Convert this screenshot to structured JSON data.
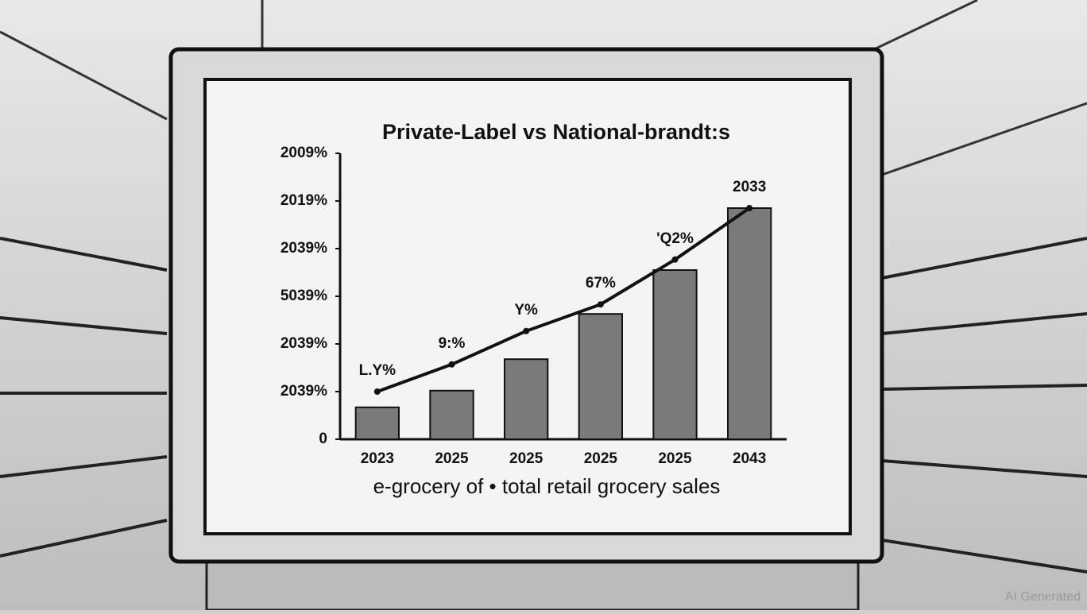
{
  "chart_data": {
    "type": "bar",
    "title": "Private-Label vs National-brandt:s",
    "x_label": "e-grocery of • total retail grocery sales",
    "categories": [
      "2023",
      "2025",
      "2025",
      "2025",
      "2025",
      "2043"
    ],
    "series": [
      {
        "type": "bar",
        "color": "#7a7a7a",
        "values": [
          0.67,
          1.02,
          1.68,
          2.63,
          3.55,
          4.85
        ]
      },
      {
        "type": "line",
        "color": "#111111",
        "values": [
          1.0,
          1.57,
          2.27,
          2.83,
          3.77,
          4.85
        ]
      }
    ],
    "annotations": [
      "L.Y%",
      "9:%",
      "Y%",
      "67%",
      "'Q2%",
      "2033"
    ],
    "ylim": [
      0,
      6
    ],
    "yticks": [
      0,
      {
        "value": 1,
        "label": "2039%"
      },
      {
        "value": 2,
        "label": "2039%"
      },
      {
        "value": 3,
        "label": "5039%"
      },
      {
        "value": 4,
        "label": "2039%"
      },
      {
        "value": 5,
        "label": "2019%"
      },
      {
        "value": 6,
        "label": "2009%"
      }
    ],
    "watermark": "AI Generated"
  }
}
